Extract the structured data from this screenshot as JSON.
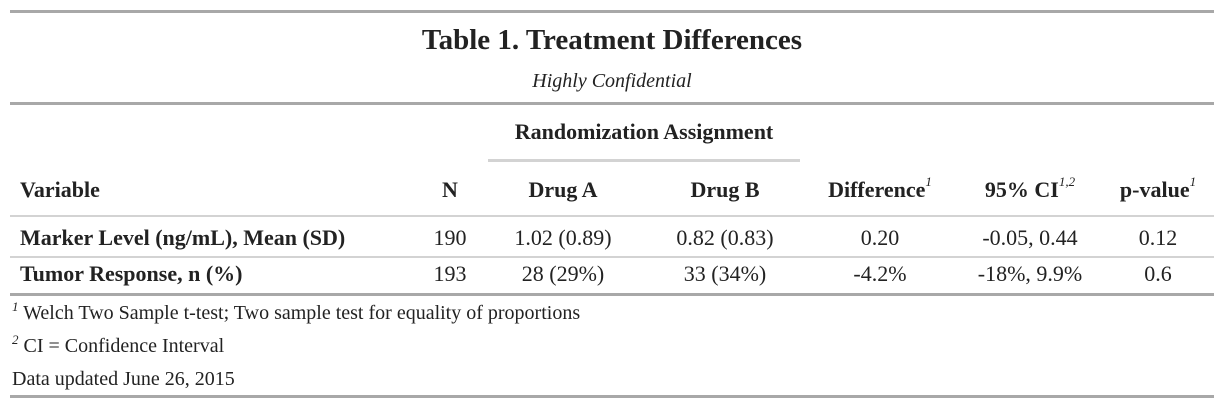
{
  "title": "Table 1. Treatment Differences",
  "subtitle": "Highly Confidential",
  "spanner": "Randomization Assignment",
  "columns": {
    "variable": "Variable",
    "n": "N",
    "drug_a": "Drug A",
    "drug_b": "Drug B",
    "difference": "Difference",
    "difference_sup": "1",
    "ci": "95% CI",
    "ci_sup": "1,2",
    "pvalue": "p-value",
    "pvalue_sup": "1"
  },
  "rows": [
    {
      "variable": "Marker Level (ng/mL), Mean (SD)",
      "n": "190",
      "drug_a": "1.02 (0.89)",
      "drug_b": "0.82 (0.83)",
      "difference": "0.20",
      "ci": "-0.05, 0.44",
      "pvalue": "0.12"
    },
    {
      "variable": "Tumor Response, n (%)",
      "n": "193",
      "drug_a": "28 (29%)",
      "drug_b": "33 (34%)",
      "difference": "-4.2%",
      "ci": "-18%, 9.9%",
      "pvalue": "0.6"
    }
  ],
  "footnotes": [
    {
      "mark": "1",
      "text": "Welch Two Sample t-test; Two sample test for equality of proportions"
    },
    {
      "mark": "2",
      "text": "CI = Confidence Interval"
    }
  ],
  "source_note": "Data updated June 26, 2015"
}
